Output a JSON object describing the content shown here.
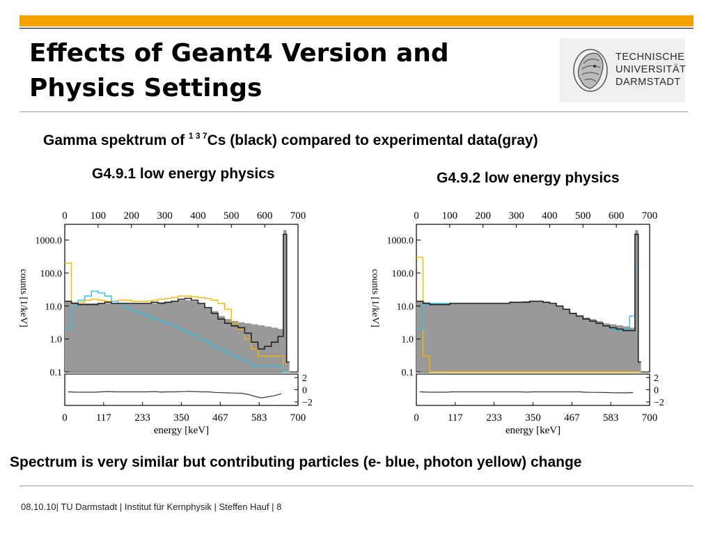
{
  "slide": {
    "title_line1": "Effects of Geant4 Version and",
    "title_line2": "Physics Settings",
    "subtitle_prefix": "Gamma spektrum of ",
    "subtitle_sup": "1 3 7",
    "subtitle_suffix": "Cs (black) compared to experimental data(gray)",
    "summary": "Spectrum is very similar but contributing particles (e- blue, photon yellow) change",
    "footer": "08.10.10|  TU Darmstadt  |  Institut für Kernphysik  | Steffen Hauf  |  8"
  },
  "logo": {
    "line1": "TECHNISCHE",
    "line2": "UNIVERSITÄT",
    "line3": "DARMSTADT",
    "emblem": "athena-head-icon"
  },
  "colors": {
    "accent_bar": "#f5a200",
    "simulation": "#222222",
    "experiment": "#999999",
    "electron": "#33c0e6",
    "photon": "#f5b800"
  },
  "chart_data": [
    {
      "type": "line",
      "title": "G4.9.1 low energy physics",
      "xlabel": "energy [keV]",
      "ylabel": "counts [1/keV]",
      "y_scale": "log",
      "xlim": [
        0,
        700
      ],
      "ylim": [
        0.1,
        3000
      ],
      "top_ticks": [
        "0",
        "100",
        "200",
        "300",
        "400",
        "500",
        "600",
        "700"
      ],
      "bottom_ticks": [
        "0",
        "117",
        "233",
        "350",
        "467",
        "583",
        "700"
      ],
      "y_ticks": [
        "1000.0",
        "100.0",
        "10.0",
        "1.0",
        "0.1"
      ],
      "residual_ticks": [
        "2",
        "0",
        "−2"
      ],
      "x": [
        10,
        30,
        50,
        70,
        90,
        110,
        130,
        150,
        170,
        190,
        210,
        230,
        250,
        270,
        290,
        310,
        330,
        350,
        370,
        390,
        410,
        430,
        450,
        470,
        490,
        510,
        530,
        550,
        570,
        590,
        610,
        630,
        650,
        662,
        670
      ],
      "series": [
        {
          "name": "black",
          "role": "simulation",
          "values": [
            14,
            12,
            11,
            11,
            11,
            12,
            13,
            12,
            12,
            12,
            12,
            12,
            12,
            13,
            12,
            13,
            14,
            16,
            17,
            15,
            12,
            9,
            6,
            4,
            3,
            2.5,
            2.2,
            1.5,
            0.8,
            0.5,
            0.6,
            0.8,
            1.2,
            1500,
            0.2
          ]
        },
        {
          "name": "gray",
          "role": "experiment",
          "values": [
            14,
            13,
            12,
            12,
            12,
            12,
            12,
            12,
            12,
            12,
            12,
            12,
            12,
            12,
            13,
            13,
            14,
            15,
            15,
            14,
            12,
            9,
            7,
            5,
            4,
            3.5,
            3.2,
            3,
            2.8,
            2.6,
            2.4,
            2.2,
            2,
            2000,
            0.2
          ]
        },
        {
          "name": "blue",
          "role": "electron",
          "values": [
            2,
            10,
            15,
            20,
            28,
            25,
            20,
            14,
            12,
            9,
            7,
            6,
            5,
            4.2,
            3.5,
            3,
            2.5,
            2,
            1.6,
            1.3,
            1,
            0.8,
            0.6,
            0.5,
            0.4,
            0.3,
            0.25,
            0.2,
            0.15,
            0.15,
            0.15,
            0.15,
            0.15,
            0.1,
            0.1
          ]
        },
        {
          "name": "yellow",
          "role": "photon",
          "values": [
            200,
            10,
            13,
            15,
            16,
            15,
            14,
            14,
            15,
            15,
            14,
            14,
            14,
            15,
            16,
            17,
            18,
            20,
            20,
            19,
            18,
            17,
            15,
            12,
            8,
            3,
            2,
            1,
            0.5,
            0.3,
            0.3,
            0.3,
            0.3,
            0.1,
            0.1
          ]
        }
      ]
    },
    {
      "type": "line",
      "title": "G4.9.2 low energy physics",
      "xlabel": "energy [keV]",
      "ylabel": "counts [1/keV]",
      "y_scale": "log",
      "xlim": [
        0,
        700
      ],
      "ylim": [
        0.1,
        3000
      ],
      "top_ticks": [
        "0",
        "100",
        "200",
        "300",
        "400",
        "500",
        "600",
        "700"
      ],
      "bottom_ticks": [
        "0",
        "117",
        "233",
        "350",
        "467",
        "583",
        "700"
      ],
      "y_ticks": [
        "1000.0",
        "100.0",
        "10.0",
        "1.0",
        "0.1"
      ],
      "residual_ticks": [
        "2",
        "0",
        "−2"
      ],
      "x": [
        10,
        30,
        50,
        70,
        90,
        110,
        130,
        150,
        170,
        190,
        210,
        230,
        250,
        270,
        290,
        310,
        330,
        350,
        370,
        390,
        410,
        430,
        450,
        470,
        490,
        510,
        530,
        550,
        570,
        590,
        610,
        630,
        650,
        662,
        670
      ],
      "series": [
        {
          "name": "black",
          "role": "simulation",
          "values": [
            14,
            12,
            11,
            11,
            11,
            12,
            12,
            12,
            12,
            12,
            12,
            12,
            12,
            12,
            13,
            13,
            13,
            14,
            14,
            13,
            12,
            10,
            8,
            6,
            5,
            4,
            3.5,
            3,
            2.5,
            2.2,
            2,
            1.8,
            1.8,
            1500,
            0.2
          ]
        },
        {
          "name": "gray",
          "role": "experiment",
          "values": [
            14,
            13,
            12,
            12,
            12,
            12,
            12,
            12,
            12,
            12,
            12,
            12,
            12,
            12,
            13,
            13,
            14,
            14,
            14,
            13,
            12,
            10,
            8,
            6,
            5,
            4.5,
            4,
            3.5,
            3,
            2.8,
            2.6,
            2.4,
            2.2,
            2000,
            0.2
          ]
        },
        {
          "name": "blue",
          "role": "electron",
          "values": [
            2,
            11,
            12,
            12,
            12,
            12,
            12,
            12,
            12,
            12,
            12,
            12,
            12,
            12,
            13,
            13,
            13,
            14,
            14,
            13,
            12,
            10,
            8,
            6,
            5,
            4,
            3.5,
            3,
            2.5,
            2,
            1.8,
            2,
            5,
            150,
            0.2
          ]
        },
        {
          "name": "yellow",
          "role": "photon",
          "values": [
            300,
            0.3,
            0.1,
            0.1,
            0.1,
            0.1,
            0.1,
            0.1,
            0.1,
            0.1,
            0.1,
            0.1,
            0.1,
            0.1,
            0.1,
            0.1,
            0.1,
            0.1,
            0.1,
            0.1,
            0.1,
            0.1,
            0.1,
            0.1,
            0.1,
            0.1,
            0.1,
            0.1,
            0.1,
            0.1,
            0.1,
            0.1,
            0.1,
            0.1,
            0.1
          ]
        }
      ]
    }
  ]
}
